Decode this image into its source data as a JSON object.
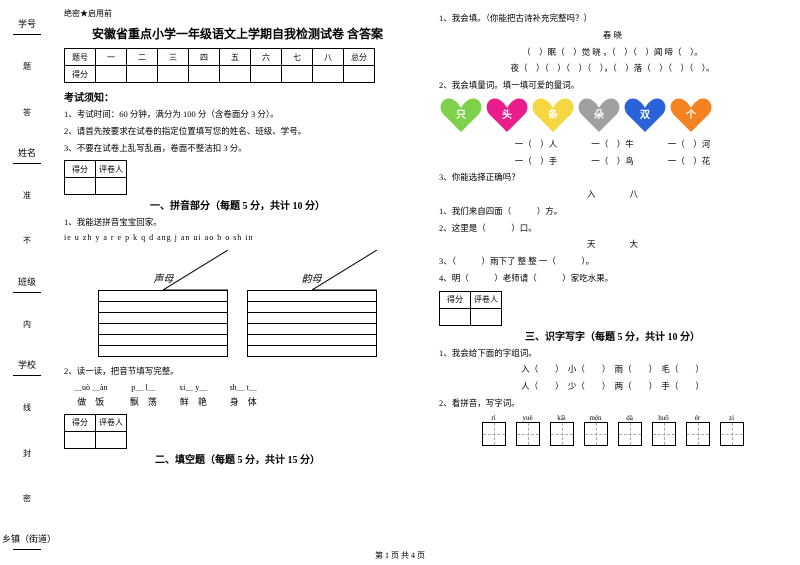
{
  "sidebar": {
    "labels": [
      "学号",
      "姓名",
      "班级",
      "学校",
      "乡镇（街道）"
    ],
    "hints": [
      "题",
      "答",
      "准",
      "不",
      "内",
      "线",
      "封",
      "密"
    ]
  },
  "header": {
    "secret": "绝密★启用前",
    "title": "安徽省重点小学一年级语文上学期自我检测试卷 含答案"
  },
  "scoretable": {
    "headers": [
      "题号",
      "一",
      "二",
      "三",
      "四",
      "五",
      "六",
      "七",
      "八",
      "总分"
    ],
    "row2": "得分"
  },
  "notice": {
    "title": "考试须知：",
    "items": [
      "1、考试时间：60 分钟，满分为 100 分（含卷面分 3 分）。",
      "2、请首先按要求在试卷的指定位置填写您的姓名、班级、学号。",
      "3、不要在试卷上乱写乱画，卷面不整洁扣 3 分。"
    ]
  },
  "scorebox": {
    "c1": "得分",
    "c2": "评卷人"
  },
  "s1": {
    "title": "一、拼音部分（每题 5 分，共计 10 分）",
    "q1": "1、我能送拼音宝宝回家。",
    "pinyin": "ie  u  zh  y  a  r  e  p  k  q  d  ang  j  an  ui  ao  b  o  sh  in",
    "house1": "声母",
    "house2": "韵母",
    "q2": "2、读一读，把音节填写完整。",
    "fills": [
      {
        "py": "＿uò ＿àn",
        "ch": "做　饭"
      },
      {
        "py": "p＿ l＿",
        "ch": "飘　荡"
      },
      {
        "py": "xi＿ y＿",
        "ch": "鲜　艳"
      },
      {
        "py": "sh＿ t＿",
        "ch": "身　体"
      }
    ]
  },
  "s2": {
    "title": "二、填空题（每题 5 分，共计 15 分）"
  },
  "right": {
    "q1": "1、我会填。（你能把古诗补充完整吗？）",
    "poem_title": "春 晓",
    "poem1": "（　）眠（　）觉 晓 ，（　）（　）闻 啼（　）。",
    "poem2": "夜（　）（　）（　）（　），（　）落（　）（　）（　）。",
    "q2": "2、我会填量词。填一填可爱的量词。",
    "hearts": [
      {
        "label": "只",
        "color": "#7fd04a"
      },
      {
        "label": "头",
        "color": "#e91e8c"
      },
      {
        "label": "条",
        "color": "#f5d742"
      },
      {
        "label": "朵",
        "color": "#a0a0a0"
      },
      {
        "label": "双",
        "color": "#2962d9"
      },
      {
        "label": "个",
        "color": "#f58220"
      }
    ],
    "qw": [
      "一（　）人　　　　一（　）牛　　　　一（　）河",
      "一（　）手　　　　一（　）鸟　　　　一（　）花"
    ],
    "q3": "3、你能选择正确吗？",
    "q3h": "入　　　　八",
    "q3a": "1、我们来自四面（　　　）方。",
    "q3b": "2、这里是（　　　）口。",
    "q3h2": "天　　　　大",
    "q3c": "3、（　　　）雨下了 整 整 一（　　　）。",
    "q3d": "4、明（　　　）老师请（　　　）家吃水果。"
  },
  "s3": {
    "title": "三、识字写字（每题 5 分，共计 10 分）",
    "q1": "1、我会给下面的字组词。",
    "w1": "入（　　）　小（　　）　雨（　　）　毛（　　）",
    "w2": "人（　　）　少（　　）　两（　　）　手（　　）",
    "q2": "2、看拼音，写字词。",
    "py": [
      "rì",
      "yuè",
      "kāi",
      "mén",
      "dà",
      "huǒ",
      "ér",
      "zi"
    ]
  },
  "footer": "第 1 页 共 4 页"
}
